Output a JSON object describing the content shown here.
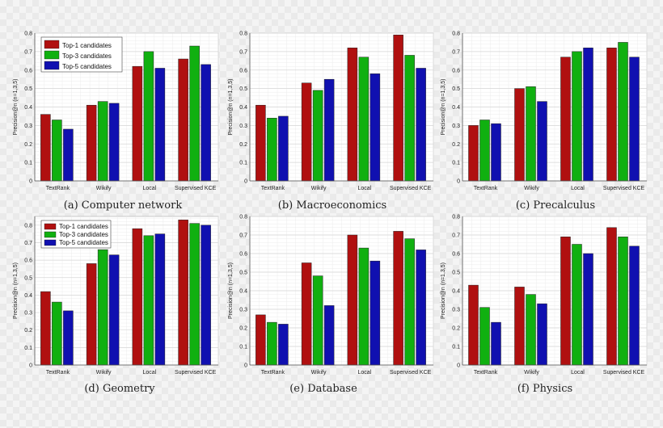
{
  "chart_data": [
    {
      "type": "bar",
      "caption": "(a) Computer network",
      "categories": [
        "TextRank",
        "Wikify",
        "Local",
        "Supervised KCE"
      ],
      "ylabel": "Precision@n (n=1,3,5)",
      "ylim": [
        0,
        0.8
      ],
      "yticks": [
        "0",
        "0.1",
        "0.2",
        "0.3",
        "0.4",
        "0.5",
        "0.6",
        "0.7",
        "0.8"
      ],
      "grid": true,
      "legend": "top-left",
      "series": [
        {
          "name": "Top-1 candidates",
          "color": "#b01010",
          "values": [
            0.36,
            0.41,
            0.62,
            0.66
          ]
        },
        {
          "name": "Top-3 candidates",
          "color": "#10b010",
          "values": [
            0.33,
            0.43,
            0.7,
            0.73
          ]
        },
        {
          "name": "Top-5 candidates",
          "color": "#1010b0",
          "values": [
            0.28,
            0.42,
            0.61,
            0.63
          ]
        }
      ]
    },
    {
      "type": "bar",
      "caption": "(b) Macroeconomics",
      "categories": [
        "TextRank",
        "Wikify",
        "Local",
        "Supervised KCE"
      ],
      "ylabel": "Precision@n (n=1,3,5)",
      "ylim": [
        0,
        0.8
      ],
      "yticks": [
        "0",
        "0.1",
        "0.2",
        "0.3",
        "0.4",
        "0.5",
        "0.6",
        "0.7",
        "0.8"
      ],
      "grid": true,
      "series": [
        {
          "name": "Top-1 candidates",
          "color": "#b01010",
          "values": [
            0.41,
            0.53,
            0.72,
            0.79
          ]
        },
        {
          "name": "Top-3 candidates",
          "color": "#10b010",
          "values": [
            0.34,
            0.49,
            0.67,
            0.68
          ]
        },
        {
          "name": "Top-5 candidates",
          "color": "#1010b0",
          "values": [
            0.35,
            0.55,
            0.58,
            0.61
          ]
        }
      ]
    },
    {
      "type": "bar",
      "caption": "(c) Precalculus",
      "categories": [
        "TextRank",
        "Wikify",
        "Local",
        "Supervised KCE"
      ],
      "ylabel": "Precision@n (n=1,3,5)",
      "ylim": [
        0,
        0.8
      ],
      "yticks": [
        "0",
        "0.1",
        "0.2",
        "0.3",
        "0.4",
        "0.5",
        "0.6",
        "0.7",
        "0.8"
      ],
      "grid": true,
      "series": [
        {
          "name": "Top-1 candidates",
          "color": "#b01010",
          "values": [
            0.3,
            0.5,
            0.67,
            0.72
          ]
        },
        {
          "name": "Top-3 candidates",
          "color": "#10b010",
          "values": [
            0.33,
            0.51,
            0.7,
            0.75
          ]
        },
        {
          "name": "Top-5 candidates",
          "color": "#1010b0",
          "values": [
            0.31,
            0.43,
            0.72,
            0.67
          ]
        }
      ]
    },
    {
      "type": "bar",
      "caption": "(d) Geometry",
      "categories": [
        "TextRank",
        "Wikify",
        "Local",
        "Supervised KCE"
      ],
      "ylabel": "Precision@n (n=1,3,5)",
      "ylim": [
        0,
        0.85
      ],
      "yticks": [
        "0",
        "0.1",
        "0.2",
        "0.3",
        "0.4",
        "0.5",
        "0.6",
        "0.7",
        "0.8"
      ],
      "grid": true,
      "legend": "top-left",
      "series": [
        {
          "name": "Top-1 candidates",
          "color": "#b01010",
          "values": [
            0.42,
            0.58,
            0.78,
            0.83
          ]
        },
        {
          "name": "Top-3 candidates",
          "color": "#10b010",
          "values": [
            0.36,
            0.66,
            0.74,
            0.81
          ]
        },
        {
          "name": "Top-5 candidates",
          "color": "#1010b0",
          "values": [
            0.31,
            0.63,
            0.75,
            0.8
          ]
        }
      ]
    },
    {
      "type": "bar",
      "caption": "(e) Database",
      "categories": [
        "TextRank",
        "Wikify",
        "Local",
        "Supervised KCE"
      ],
      "ylabel": "Precision@n (n=1,3,5)",
      "ylim": [
        0,
        0.8
      ],
      "yticks": [
        "0",
        "0.1",
        "0.2",
        "0.3",
        "0.4",
        "0.5",
        "0.6",
        "0.7",
        "0.8"
      ],
      "grid": true,
      "series": [
        {
          "name": "Top-1 candidates",
          "color": "#b01010",
          "values": [
            0.27,
            0.55,
            0.7,
            0.72
          ]
        },
        {
          "name": "Top-3 candidates",
          "color": "#10b010",
          "values": [
            0.23,
            0.48,
            0.63,
            0.68
          ]
        },
        {
          "name": "Top-5 candidates",
          "color": "#1010b0",
          "values": [
            0.22,
            0.32,
            0.56,
            0.62
          ]
        }
      ]
    },
    {
      "type": "bar",
      "caption": "(f) Physics",
      "categories": [
        "TextRank",
        "Wikify",
        "Local",
        "Supervised KCE"
      ],
      "ylabel": "Precision@n (n=1,3,5)",
      "ylim": [
        0,
        0.8
      ],
      "yticks": [
        "0",
        "0.1",
        "0.2",
        "0.3",
        "0.4",
        "0.5",
        "0.6",
        "0.7",
        "0.8"
      ],
      "grid": true,
      "series": [
        {
          "name": "Top-1 candidates",
          "color": "#b01010",
          "values": [
            0.43,
            0.42,
            0.69,
            0.74
          ]
        },
        {
          "name": "Top-3 candidates",
          "color": "#10b010",
          "values": [
            0.31,
            0.38,
            0.65,
            0.69
          ]
        },
        {
          "name": "Top-5 candidates",
          "color": "#1010b0",
          "values": [
            0.23,
            0.33,
            0.6,
            0.64
          ]
        }
      ]
    }
  ]
}
